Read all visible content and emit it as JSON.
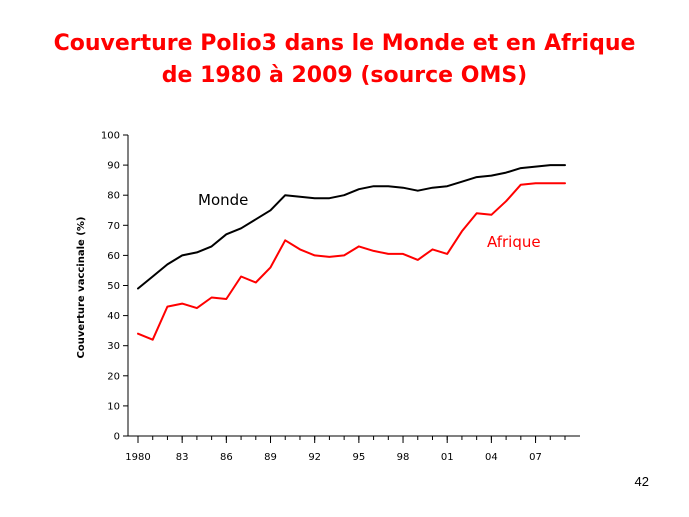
{
  "slide": {
    "title_line1": "Couverture Polio3 dans le Monde et en Afrique",
    "title_line2": "de 1980 à 2009 (source OMS)",
    "page_number": "42"
  },
  "chart_data": {
    "type": "line",
    "title": "",
    "xlabel": "",
    "ylabel": "Couverture vaccinale (%)",
    "ylim": [
      0,
      100
    ],
    "yticks": [
      0,
      10,
      20,
      30,
      40,
      50,
      60,
      70,
      80,
      90,
      100
    ],
    "xlim": [
      1980,
      2009
    ],
    "xtick_values": [
      1980,
      1983,
      1986,
      1989,
      1992,
      1995,
      1998,
      2001,
      2004,
      2007
    ],
    "xtick_labels": [
      "1980",
      "83",
      "86",
      "89",
      "92",
      "95",
      "98",
      "01",
      "04",
      "07"
    ],
    "grid": false,
    "x": [
      1980,
      1981,
      1982,
      1983,
      1984,
      1985,
      1986,
      1987,
      1988,
      1989,
      1990,
      1991,
      1992,
      1993,
      1994,
      1995,
      1996,
      1997,
      1998,
      1999,
      2000,
      2001,
      2002,
      2003,
      2004,
      2005,
      2006,
      2007,
      2008,
      2009
    ],
    "series": [
      {
        "name": "Monde",
        "color": "#000000",
        "values": [
          49,
          53,
          57,
          60,
          61,
          63,
          67,
          69,
          72,
          75,
          80,
          79.5,
          79,
          79,
          80,
          82,
          83,
          83,
          82.5,
          81.5,
          82.5,
          83,
          84.5,
          86,
          86.5,
          87.5,
          89,
          89.5,
          90,
          90
        ]
      },
      {
        "name": "Afrique",
        "color": "#ff0000",
        "values": [
          34,
          32,
          43,
          44,
          42.5,
          46,
          45.5,
          53,
          51,
          56,
          65,
          62,
          60,
          59.5,
          60,
          63,
          61.5,
          60.5,
          60.5,
          58.5,
          62,
          60.5,
          68,
          74,
          73.5,
          78,
          83.5,
          84,
          84,
          84
        ]
      }
    ]
  }
}
